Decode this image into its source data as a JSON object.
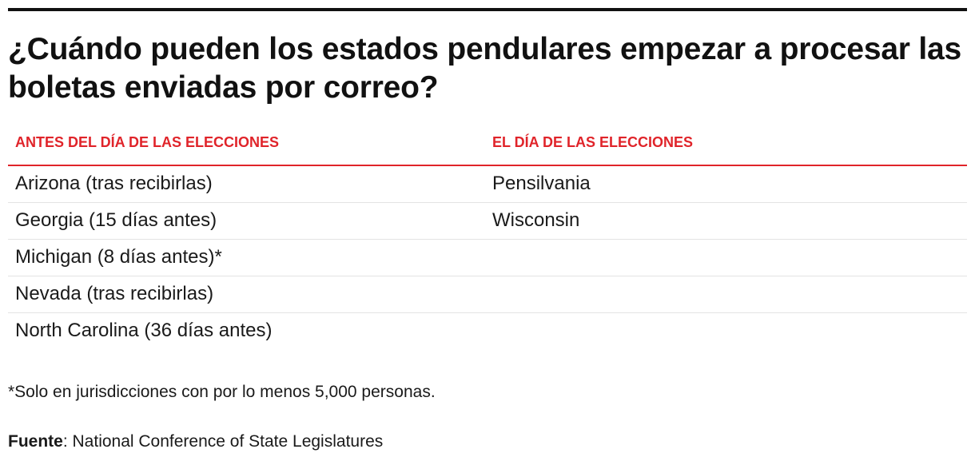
{
  "chart_data": {
    "type": "table",
    "title": "¿Cuándo pueden los estados pendulares empezar a procesar las boletas enviadas por correo?",
    "columns": [
      "ANTES DEL DÍA DE LAS ELECCIONES",
      "EL DÍA DE LAS ELECCIONES"
    ],
    "rows": [
      [
        "Arizona (tras recibirlas)",
        "Pensilvania"
      ],
      [
        "Georgia (15 días antes)",
        "Wisconsin"
      ],
      [
        "Michigan (8 días antes)*",
        ""
      ],
      [
        "Nevada (tras recibirlas)",
        ""
      ],
      [
        "North Carolina (36 días antes)",
        ""
      ]
    ],
    "note": "*Solo en jurisdicciones con por lo menos 5,000 personas.",
    "source_label": "Fuente",
    "source_text": ": National Conference of State Legislatures"
  },
  "colors": {
    "header_text": "#e0242a",
    "header_rule": "#e0242a",
    "top_rule": "#111111",
    "row_divider": "#e3e3e3"
  }
}
